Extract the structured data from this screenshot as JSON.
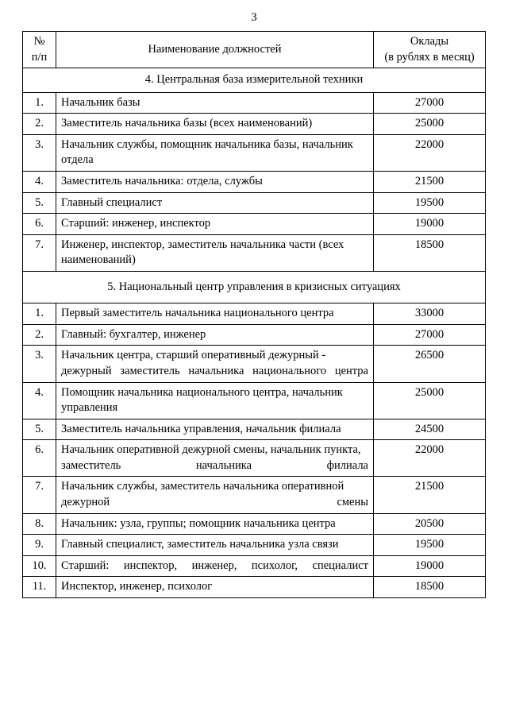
{
  "page_number": "3",
  "header": {
    "num": "№\nп/п",
    "title": "Наименование должностей",
    "salary": "Оклады\n(в рублях в месяц)"
  },
  "sections": [
    {
      "heading": "4. Центральная база измерительной техники",
      "rows": [
        {
          "n": "1.",
          "t": "Начальник базы",
          "s": "27000",
          "j": false
        },
        {
          "n": "2.",
          "t": "Заместитель начальника базы (всех наименований)",
          "s": "25000",
          "j": false
        },
        {
          "n": "3.",
          "t": "Начальник службы, помощник начальника базы, начальник отдела",
          "s": "22000",
          "j": false
        },
        {
          "n": "4.",
          "t": "Заместитель начальника: отдела, службы",
          "s": "21500",
          "j": false
        },
        {
          "n": "5.",
          "t": "Главный специалист",
          "s": "19500",
          "j": false
        },
        {
          "n": "6.",
          "t": "Старший: инженер, инспектор",
          "s": "19000",
          "j": false
        },
        {
          "n": "7.",
          "t": "Инженер, инспектор, заместитель начальника части (всех наименований)",
          "s": "18500",
          "j": true
        }
      ]
    },
    {
      "heading": "5. Национальный центр управления в кризисных ситуациях",
      "pad": true,
      "rows": [
        {
          "n": "1.",
          "t": "Первый заместитель начальника национального центра",
          "s": "33000",
          "j": false
        },
        {
          "n": "2.",
          "t": "Главный: бухгалтер, инженер",
          "s": "27000",
          "j": false
        },
        {
          "n": "3.",
          "t": "Начальник центра, старший оперативный дежурный - дежурный заместитель начальника национального центра",
          "s": "26500",
          "j": true
        },
        {
          "n": "4.",
          "t": "Помощник начальника национального центра, начальник управления",
          "s": "25000",
          "j": true
        },
        {
          "n": "5.",
          "t": "Заместитель начальника управления, начальник филиала",
          "s": "24500",
          "j": false
        },
        {
          "n": "6.",
          "t": "Начальник оперативной дежурной смены, начальник пункта, заместитель начальника филиала",
          "s": "22000",
          "j": true
        },
        {
          "n": "7.",
          "t": "Начальник службы, заместитель начальника оперативной дежурной смены",
          "s": "21500",
          "j": true
        },
        {
          "n": "8.",
          "t": "Начальник: узла, группы; помощник начальника центра",
          "s": "20500",
          "j": false
        },
        {
          "n": "9.",
          "t": "Главный специалист, заместитель начальника узла связи",
          "s": "19500",
          "j": false
        },
        {
          "n": "10.",
          "t": "Старший: инспектор, инженер, психолог, специалист",
          "s": "19000",
          "j": true
        },
        {
          "n": "11.",
          "t": "Инспектор, инженер, психолог",
          "s": "18500",
          "j": false
        }
      ]
    }
  ]
}
